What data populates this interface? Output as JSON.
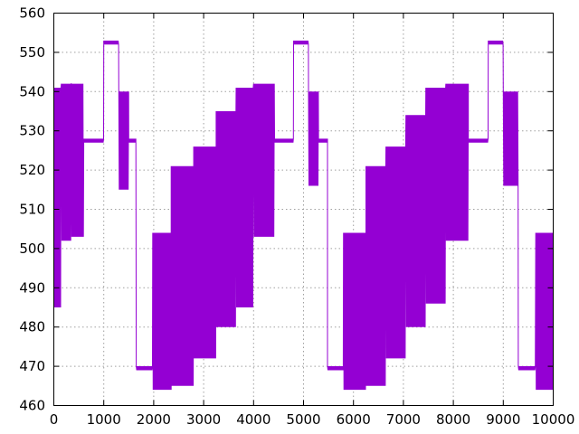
{
  "chart_data": {
    "type": "line",
    "title": "",
    "xlabel": "",
    "ylabel": "",
    "xlim": [
      0,
      10000
    ],
    "ylim": [
      460,
      560
    ],
    "xticks": [
      "0",
      "1000",
      "2000",
      "3000",
      "4000",
      "5000",
      "6000",
      "7000",
      "8000",
      "9000",
      "10000"
    ],
    "yticks": [
      "460",
      "470",
      "480",
      "490",
      "500",
      "510",
      "520",
      "530",
      "540",
      "550",
      "560"
    ],
    "grid": true,
    "legend": "none",
    "series": [
      {
        "color": "#9400d3",
        "style": "dense oscillating band",
        "bands": [
          {
            "x": [
              0,
              150
            ],
            "low": 485,
            "high": 541
          },
          {
            "x": [
              150,
              350
            ],
            "low": 502,
            "high": 542
          },
          {
            "x": [
              350,
              600
            ],
            "low": 503,
            "high": 542
          },
          {
            "x": [
              600,
              1000
            ],
            "low": 527,
            "high": 528
          },
          {
            "x": [
              1000,
              1300
            ],
            "low": 552,
            "high": 553
          },
          {
            "x": [
              1300,
              1500
            ],
            "low": 515,
            "high": 540
          },
          {
            "x": [
              1500,
              1650
            ],
            "low": 527,
            "high": 528
          },
          {
            "x": [
              1650,
              1980
            ],
            "low": 469,
            "high": 470
          },
          {
            "x": [
              1980,
              2350
            ],
            "low": 464,
            "high": 504
          },
          {
            "x": [
              2350,
              2800
            ],
            "low": 465,
            "high": 521
          },
          {
            "x": [
              2800,
              3250
            ],
            "low": 472,
            "high": 526
          },
          {
            "x": [
              3250,
              3650
            ],
            "low": 480,
            "high": 535
          },
          {
            "x": [
              3650,
              4000
            ],
            "low": 485,
            "high": 541
          },
          {
            "x": [
              4000,
              4420
            ],
            "low": 503,
            "high": 542
          },
          {
            "x": [
              4420,
              4800
            ],
            "low": 527,
            "high": 528
          },
          {
            "x": [
              4800,
              5100
            ],
            "low": 552,
            "high": 553
          },
          {
            "x": [
              5100,
              5300
            ],
            "low": 516,
            "high": 540
          },
          {
            "x": [
              5300,
              5480
            ],
            "low": 527,
            "high": 528
          },
          {
            "x": [
              5480,
              5800
            ],
            "low": 469,
            "high": 470
          },
          {
            "x": [
              5800,
              6250
            ],
            "low": 464,
            "high": 504
          },
          {
            "x": [
              6250,
              6650
            ],
            "low": 465,
            "high": 521
          },
          {
            "x": [
              6650,
              7050
            ],
            "low": 472,
            "high": 526
          },
          {
            "x": [
              7050,
              7450
            ],
            "low": 480,
            "high": 534
          },
          {
            "x": [
              7450,
              7850
            ],
            "low": 486,
            "high": 541
          },
          {
            "x": [
              7850,
              8300
            ],
            "low": 502,
            "high": 542
          },
          {
            "x": [
              8300,
              8700
            ],
            "low": 527,
            "high": 528
          },
          {
            "x": [
              8700,
              9000
            ],
            "low": 552,
            "high": 553
          },
          {
            "x": [
              9000,
              9300
            ],
            "low": 516,
            "high": 540
          },
          {
            "x": [
              9300,
              9650
            ],
            "low": 469,
            "high": 470
          },
          {
            "x": [
              9650,
              10000
            ],
            "low": 464,
            "high": 504
          }
        ]
      }
    ]
  }
}
